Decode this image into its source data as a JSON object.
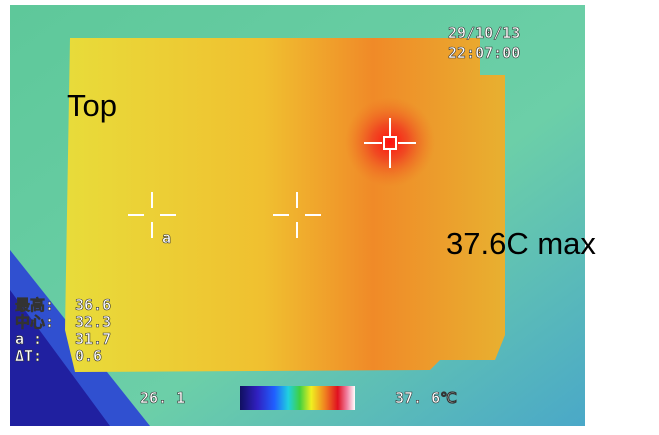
{
  "overlay": {
    "date": "29/10/13",
    "time": "22:07:00"
  },
  "annotations": {
    "top": "Top",
    "max": "37.6C max"
  },
  "readouts": [
    {
      "label": "最高:",
      "value": "36.6"
    },
    {
      "label": "中心:",
      "value": "32.3"
    },
    {
      "label": "a  :",
      "value": "31.7"
    },
    {
      "label": "ΔT:",
      "value": "0.6"
    }
  ],
  "marker_label": "a",
  "scale": {
    "min": "26. 1",
    "max": "37. 6℃"
  }
}
